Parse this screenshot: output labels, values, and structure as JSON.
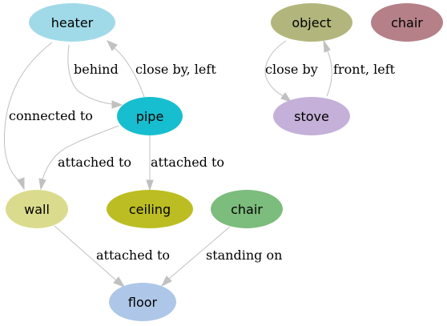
{
  "nodes": {
    "heater": {
      "label": "heater",
      "color": "#a0dae8"
    },
    "object": {
      "label": "object",
      "color": "#b2b67c"
    },
    "chair_a": {
      "label": "chair",
      "color": "#b58087"
    },
    "pipe": {
      "label": "pipe",
      "color": "#17becf"
    },
    "stove": {
      "label": "stove",
      "color": "#c4b0d8"
    },
    "wall": {
      "label": "wall",
      "color": "#dbdb8d"
    },
    "ceiling": {
      "label": "ceiling",
      "color": "#bcbd22"
    },
    "chair_b": {
      "label": "chair",
      "color": "#7cbc7c"
    },
    "floor": {
      "label": "floor",
      "color": "#aec7e8"
    }
  },
  "edges": {
    "heater_pipe": {
      "label": "behind"
    },
    "pipe_heater": {
      "label": "close by, left"
    },
    "heater_wall": {
      "label": "connected to"
    },
    "pipe_wall": {
      "label": "attached to"
    },
    "pipe_ceiling": {
      "label": "attached to"
    },
    "object_stove": {
      "label": "close by"
    },
    "stove_object": {
      "label": "front, left"
    },
    "wall_floor": {
      "label": "attached to"
    },
    "chairb_floor": {
      "label": "standing on"
    }
  },
  "colors": {
    "edge": "#c0c0c0",
    "background": "#ffffff"
  }
}
